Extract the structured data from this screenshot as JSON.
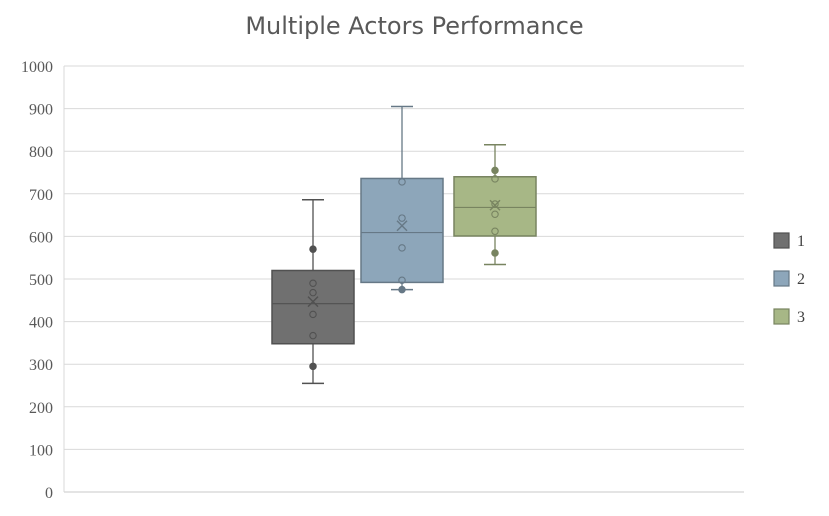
{
  "chart_data": {
    "type": "box",
    "title": "Multiple Actors Performance",
    "xlabel": "",
    "ylabel": "",
    "ylim": [
      0,
      1000
    ],
    "yticks": [
      0,
      100,
      200,
      300,
      400,
      500,
      600,
      700,
      800,
      900,
      1000
    ],
    "grid": true,
    "legend_position": "right",
    "series": [
      {
        "name": "1",
        "color": "#707070",
        "min": 255,
        "q1": 348,
        "median": 442,
        "q3": 520,
        "max": 686,
        "mean": 447,
        "points": [
          295,
          367,
          417,
          468,
          490,
          570
        ]
      },
      {
        "name": "2",
        "color": "#8da6ba",
        "min": 475,
        "q1": 492,
        "median": 609,
        "q3": 736,
        "max": 905,
        "mean": 625,
        "points": [
          475,
          497,
          573,
          643,
          728
        ]
      },
      {
        "name": "3",
        "color": "#a7b786",
        "min": 534,
        "q1": 601,
        "median": 668,
        "q3": 740,
        "max": 815,
        "mean": 673,
        "points": [
          561,
          612,
          652,
          676,
          735,
          755
        ]
      }
    ]
  }
}
